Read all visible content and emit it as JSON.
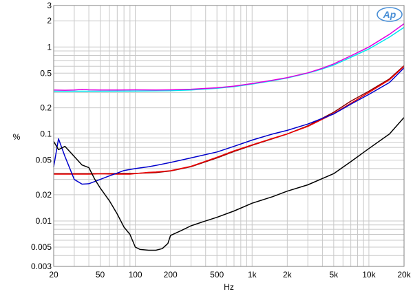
{
  "chart_data": {
    "type": "line",
    "title": "",
    "xlabel": "Hz",
    "ylabel": "%",
    "x_scale": "log",
    "y_scale": "log",
    "xlim": [
      20,
      20000
    ],
    "ylim": [
      0.003,
      3
    ],
    "grid": true,
    "logo": "Ap",
    "x_ticks": [
      {
        "value": 20,
        "label": "20"
      },
      {
        "value": 50,
        "label": "50"
      },
      {
        "value": 100,
        "label": "100"
      },
      {
        "value": 200,
        "label": "200"
      },
      {
        "value": 500,
        "label": "500"
      },
      {
        "value": 1000,
        "label": "1k"
      },
      {
        "value": 2000,
        "label": "2k"
      },
      {
        "value": 5000,
        "label": "5k"
      },
      {
        "value": 10000,
        "label": "10k"
      },
      {
        "value": 20000,
        "label": "20k"
      }
    ],
    "y_ticks": [
      {
        "value": 0.003,
        "label": "0.003"
      },
      {
        "value": 0.005,
        "label": "0.005"
      },
      {
        "value": 0.01,
        "label": "0.01"
      },
      {
        "value": 0.02,
        "label": "0.02"
      },
      {
        "value": 0.05,
        "label": "0.05"
      },
      {
        "value": 0.1,
        "label": "0.1"
      },
      {
        "value": 0.2,
        "label": "0.2"
      },
      {
        "value": 0.5,
        "label": "0.5"
      },
      {
        "value": 1,
        "label": "1"
      },
      {
        "value": 2,
        "label": "2"
      },
      {
        "value": 3,
        "label": "3"
      }
    ],
    "series": [
      {
        "color": "#00e5ee",
        "points": [
          [
            20,
            0.31
          ],
          [
            30,
            0.31
          ],
          [
            50,
            0.31
          ],
          [
            100,
            0.312
          ],
          [
            200,
            0.315
          ],
          [
            300,
            0.32
          ],
          [
            500,
            0.335
          ],
          [
            700,
            0.35
          ],
          [
            1000,
            0.375
          ],
          [
            1500,
            0.41
          ],
          [
            2000,
            0.44
          ],
          [
            3000,
            0.5
          ],
          [
            4000,
            0.56
          ],
          [
            5000,
            0.62
          ],
          [
            7000,
            0.76
          ],
          [
            10000,
            0.95
          ],
          [
            15000,
            1.3
          ],
          [
            20000,
            1.68
          ]
        ]
      },
      {
        "color": "#e000e0",
        "points": [
          [
            20,
            0.32
          ],
          [
            25,
            0.318
          ],
          [
            30,
            0.32
          ],
          [
            35,
            0.325
          ],
          [
            40,
            0.322
          ],
          [
            50,
            0.32
          ],
          [
            70,
            0.32
          ],
          [
            100,
            0.322
          ],
          [
            150,
            0.32
          ],
          [
            200,
            0.322
          ],
          [
            300,
            0.327
          ],
          [
            500,
            0.34
          ],
          [
            700,
            0.355
          ],
          [
            1000,
            0.38
          ],
          [
            1500,
            0.415
          ],
          [
            2000,
            0.445
          ],
          [
            3000,
            0.505
          ],
          [
            4000,
            0.57
          ],
          [
            5000,
            0.64
          ],
          [
            7000,
            0.79
          ],
          [
            10000,
            1.0
          ],
          [
            15000,
            1.4
          ],
          [
            20000,
            1.85
          ]
        ]
      },
      {
        "color": "#8b0000",
        "points": [
          [
            20,
            0.035
          ],
          [
            50,
            0.035
          ],
          [
            100,
            0.0352
          ],
          [
            150,
            0.036
          ],
          [
            200,
            0.0375
          ],
          [
            300,
            0.042
          ],
          [
            500,
            0.053
          ],
          [
            700,
            0.063
          ],
          [
            1000,
            0.074
          ],
          [
            2000,
            0.1
          ],
          [
            3000,
            0.124
          ],
          [
            5000,
            0.178
          ],
          [
            7000,
            0.238
          ],
          [
            10000,
            0.31
          ],
          [
            15000,
            0.43
          ],
          [
            20000,
            0.61
          ]
        ]
      },
      {
        "color": "#ee0000",
        "points": [
          [
            20,
            0.0345
          ],
          [
            30,
            0.0345
          ],
          [
            40,
            0.0345
          ],
          [
            50,
            0.0348
          ],
          [
            70,
            0.0345
          ],
          [
            90,
            0.0345
          ],
          [
            100,
            0.035
          ],
          [
            130,
            0.0362
          ],
          [
            150,
            0.0365
          ],
          [
            200,
            0.0378
          ],
          [
            300,
            0.0425
          ],
          [
            500,
            0.054
          ],
          [
            700,
            0.064
          ],
          [
            1000,
            0.075
          ],
          [
            1500,
            0.089
          ],
          [
            2000,
            0.1
          ],
          [
            3000,
            0.122
          ],
          [
            5000,
            0.172
          ],
          [
            7000,
            0.225
          ],
          [
            10000,
            0.3
          ],
          [
            15000,
            0.42
          ],
          [
            20000,
            0.6
          ]
        ]
      },
      {
        "color": "#0000cc",
        "points": [
          [
            20,
            0.042
          ],
          [
            22,
            0.088
          ],
          [
            25,
            0.055
          ],
          [
            30,
            0.03
          ],
          [
            35,
            0.0265
          ],
          [
            40,
            0.0268
          ],
          [
            50,
            0.03
          ],
          [
            60,
            0.033
          ],
          [
            70,
            0.0355
          ],
          [
            80,
            0.038
          ],
          [
            100,
            0.04
          ],
          [
            130,
            0.042
          ],
          [
            150,
            0.0435
          ],
          [
            200,
            0.047
          ],
          [
            300,
            0.053
          ],
          [
            500,
            0.062
          ],
          [
            700,
            0.072
          ],
          [
            1000,
            0.085
          ],
          [
            1500,
            0.1
          ],
          [
            2000,
            0.11
          ],
          [
            3000,
            0.13
          ],
          [
            5000,
            0.17
          ],
          [
            7000,
            0.22
          ],
          [
            10000,
            0.285
          ],
          [
            15000,
            0.39
          ],
          [
            20000,
            0.575
          ]
        ]
      },
      {
        "color": "#000000",
        "points": [
          [
            20,
            0.082
          ],
          [
            22,
            0.066
          ],
          [
            25,
            0.072
          ],
          [
            30,
            0.055
          ],
          [
            35,
            0.044
          ],
          [
            40,
            0.041
          ],
          [
            45,
            0.03
          ],
          [
            50,
            0.024
          ],
          [
            60,
            0.017
          ],
          [
            70,
            0.012
          ],
          [
            80,
            0.0085
          ],
          [
            90,
            0.007
          ],
          [
            100,
            0.005
          ],
          [
            110,
            0.0047
          ],
          [
            130,
            0.0046
          ],
          [
            150,
            0.0046
          ],
          [
            170,
            0.0048
          ],
          [
            190,
            0.0055
          ],
          [
            200,
            0.0068
          ],
          [
            250,
            0.0078
          ],
          [
            300,
            0.0088
          ],
          [
            400,
            0.01
          ],
          [
            500,
            0.011
          ],
          [
            700,
            0.013
          ],
          [
            1000,
            0.016
          ],
          [
            1500,
            0.019
          ],
          [
            2000,
            0.022
          ],
          [
            3000,
            0.026
          ],
          [
            5000,
            0.035
          ],
          [
            7000,
            0.048
          ],
          [
            10000,
            0.068
          ],
          [
            15000,
            0.1
          ],
          [
            20000,
            0.155
          ]
        ]
      }
    ]
  }
}
